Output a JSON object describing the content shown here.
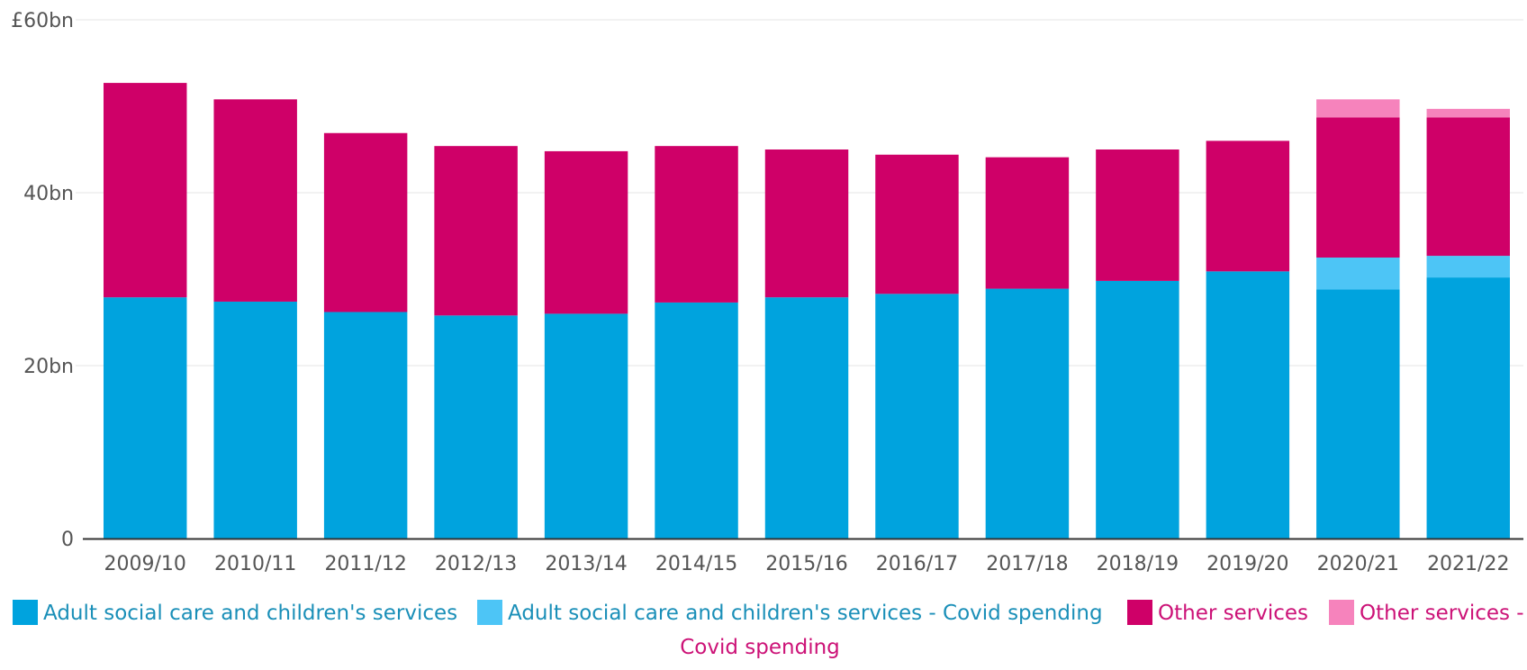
{
  "chart_data": {
    "type": "bar",
    "stacked": true,
    "categories": [
      "2009/10",
      "2010/11",
      "2011/12",
      "2012/13",
      "2013/14",
      "2014/15",
      "2015/16",
      "2016/17",
      "2017/18",
      "2018/19",
      "2019/20",
      "2020/21",
      "2021/22"
    ],
    "series": [
      {
        "name": "Adult social care and children's services",
        "color": "#00a3de",
        "values": [
          27.9,
          27.4,
          26.2,
          25.8,
          26.0,
          27.3,
          27.9,
          28.3,
          28.9,
          29.8,
          30.9,
          28.8,
          30.2
        ]
      },
      {
        "name": "Adult social care and children's services - Covid spending",
        "color": "#4dc5f6",
        "values": [
          0,
          0,
          0,
          0,
          0,
          0,
          0,
          0,
          0,
          0,
          0,
          3.7,
          2.5
        ]
      },
      {
        "name": "Other services",
        "color": "#cf0068",
        "values": [
          24.8,
          23.4,
          20.7,
          19.6,
          18.8,
          18.1,
          17.1,
          16.1,
          15.2,
          15.2,
          15.1,
          16.2,
          16.0
        ]
      },
      {
        "name": "Other services - Covid spending",
        "color": "#f683bc",
        "values": [
          0,
          0,
          0,
          0,
          0,
          0,
          0,
          0,
          0,
          0,
          0,
          2.1,
          1.0
        ]
      }
    ],
    "yticks": [
      0,
      20,
      40,
      60
    ],
    "ytick_labels": [
      "0",
      "20bn",
      "40bn",
      "£60bn"
    ],
    "ylim": [
      0,
      60
    ],
    "title": "",
    "xlabel": "",
    "ylabel": "",
    "grid": true,
    "legend_position": "bottom",
    "legend_text_colors": [
      "#1a8fb8",
      "#1a8fb8",
      "#cc1277",
      "#cc1277"
    ]
  }
}
